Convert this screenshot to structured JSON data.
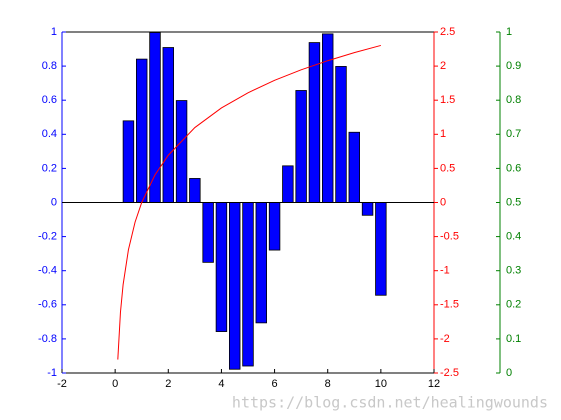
{
  "chart_data": {
    "type": "bar",
    "x": [
      0.5,
      1,
      1.5,
      2,
      2.5,
      3,
      3.5,
      4,
      4.5,
      5,
      5.5,
      6,
      6.5,
      7,
      7.5,
      8,
      8.5,
      9,
      9.5,
      10
    ],
    "values": [
      0.479,
      0.841,
      0.997,
      0.909,
      0.598,
      0.141,
      -0.351,
      -0.757,
      -0.978,
      -0.959,
      -0.706,
      -0.279,
      0.215,
      0.657,
      0.938,
      0.989,
      0.798,
      0.412,
      -0.075,
      -0.544
    ],
    "color": "#0000ff",
    "xlim": [
      -2,
      12
    ],
    "xticks": [
      -2,
      0,
      2,
      4,
      6,
      8,
      10,
      12
    ],
    "ylim": [
      -1,
      1
    ],
    "yticks": [
      -1,
      -0.8,
      -0.6,
      -0.4,
      -0.2,
      0,
      0.2,
      0.4,
      0.6,
      0.8,
      1
    ],
    "y2lim": [
      -2.5,
      2.5
    ],
    "y2ticks": [
      -2.5,
      -2,
      -1.5,
      -1,
      -0.5,
      0,
      0.5,
      1,
      1.5,
      2,
      2.5
    ],
    "y2color": "#ff0000",
    "y3lim": [
      0,
      1
    ],
    "y3ticks": [
      0,
      0.1,
      0.2,
      0.3,
      0.4,
      0.5,
      0.6,
      0.7,
      0.8,
      0.9,
      1
    ],
    "y3color": "#008000",
    "series": [
      {
        "type": "line",
        "axis": "y2",
        "color": "#ff0000",
        "x": [
          0.1,
          0.2,
          0.3,
          0.5,
          0.75,
          1,
          1.5,
          2,
          3,
          4,
          5,
          6,
          7,
          8,
          9,
          10
        ],
        "values": [
          -2.303,
          -1.609,
          -1.204,
          -0.693,
          -0.288,
          0,
          0.405,
          0.693,
          1.099,
          1.386,
          1.609,
          1.792,
          1.946,
          2.079,
          2.197,
          2.303
        ]
      }
    ],
    "watermark": "https://blog.csdn.net/healingwounds"
  }
}
